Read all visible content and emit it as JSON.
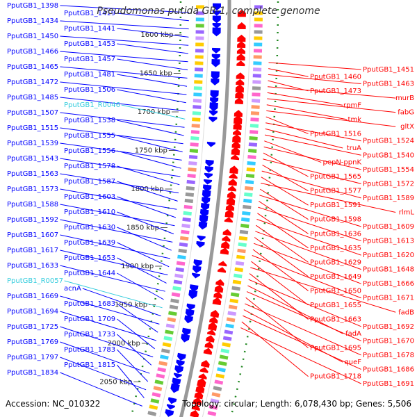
{
  "header": {
    "title": "Pseudomonas putida GB-1, complete genome"
  },
  "footer": {
    "accession": "Accession: NC_010322",
    "summary": "Topology: circular; Length: 6,078,430 bp; Genes: 5,506"
  },
  "colors": {
    "forward_gene": "#0000ff",
    "reverse_gene": "#ff0000",
    "rna_gene": "#33ccdd",
    "backbone": "#999999",
    "tick": "#228822"
  },
  "scale_ticks": [
    "1600 kbp",
    "1650 kbp",
    "1700 kbp",
    "1750 kbp",
    "1800 kbp",
    "1850 kbp",
    "1900 kbp",
    "1950 kbp",
    "2000 kbp",
    "2050 kbp"
  ],
  "labels_left": [
    {
      "text": "PputGB1_1398",
      "type": "fwd"
    },
    {
      "text": "PputGB1_1419",
      "type": "fwd"
    },
    {
      "text": "PputGB1_1434",
      "type": "fwd"
    },
    {
      "text": "PputGB1_1441",
      "type": "fwd"
    },
    {
      "text": "PputGB1_1450",
      "type": "fwd"
    },
    {
      "text": "PputGB1_1453",
      "type": "fwd"
    },
    {
      "text": "PputGB1_1466",
      "type": "fwd"
    },
    {
      "text": "PputGB1_1457",
      "type": "fwd"
    },
    {
      "text": "PputGB1_1465",
      "type": "fwd"
    },
    {
      "text": "PputGB1_1481",
      "type": "fwd"
    },
    {
      "text": "PputGB1_1472",
      "type": "fwd"
    },
    {
      "text": "PputGB1_1506",
      "type": "fwd"
    },
    {
      "text": "PputGB1_1485",
      "type": "fwd"
    },
    {
      "text": "PputGB1_R0046",
      "type": "rna"
    },
    {
      "text": "PputGB1_1507",
      "type": "fwd"
    },
    {
      "text": "PputGB1_1538",
      "type": "fwd"
    },
    {
      "text": "PputGB1_1515",
      "type": "fwd"
    },
    {
      "text": "PputGB1_1555",
      "type": "fwd"
    },
    {
      "text": "PputGB1_1539",
      "type": "fwd"
    },
    {
      "text": "PputGB1_1556",
      "type": "fwd"
    },
    {
      "text": "PputGB1_1543",
      "type": "fwd"
    },
    {
      "text": "PputGB1_1578",
      "type": "fwd"
    },
    {
      "text": "PputGB1_1563",
      "type": "fwd"
    },
    {
      "text": "PputGB1_1587",
      "type": "fwd"
    },
    {
      "text": "PputGB1_1573",
      "type": "fwd"
    },
    {
      "text": "PputGB1_1603",
      "type": "fwd"
    },
    {
      "text": "PputGB1_1588",
      "type": "fwd"
    },
    {
      "text": "PputGB1_1610",
      "type": "fwd"
    },
    {
      "text": "PputGB1_1592",
      "type": "fwd"
    },
    {
      "text": "PputGB1_1630",
      "type": "fwd"
    },
    {
      "text": "PputGB1_1607",
      "type": "fwd"
    },
    {
      "text": "PputGB1_1639",
      "type": "fwd"
    },
    {
      "text": "PputGB1_1617",
      "type": "fwd"
    },
    {
      "text": "PputGB1_1653",
      "type": "fwd"
    },
    {
      "text": "PputGB1_1633",
      "type": "fwd"
    },
    {
      "text": "PputGB1_1644",
      "type": "fwd"
    },
    {
      "text": "PputGB1_R0057",
      "type": "rna"
    },
    {
      "text": "acnA",
      "type": "fwd"
    },
    {
      "text": "PputGB1_1669",
      "type": "fwd"
    },
    {
      "text": "PputGB1_1683",
      "type": "fwd"
    },
    {
      "text": "PputGB1_1694",
      "type": "fwd"
    },
    {
      "text": "PputGB1_1709",
      "type": "fwd"
    },
    {
      "text": "PputGB1_1725",
      "type": "fwd"
    },
    {
      "text": "PputGB1_1733",
      "type": "fwd"
    },
    {
      "text": "PputGB1_1769",
      "type": "fwd"
    },
    {
      "text": "PputGB1_1783",
      "type": "fwd"
    },
    {
      "text": "PputGB1_1797",
      "type": "fwd"
    },
    {
      "text": "PputGB1_1815",
      "type": "fwd"
    },
    {
      "text": "PputGB1_1834",
      "type": "fwd"
    }
  ],
  "labels_right": [
    {
      "text": "PputGB1_1451",
      "type": "rev"
    },
    {
      "text": "PputGB1_1460",
      "type": "rev"
    },
    {
      "text": "PputGB1_1463",
      "type": "rev"
    },
    {
      "text": "PputGB1_1473",
      "type": "rev"
    },
    {
      "text": "murB",
      "type": "rev"
    },
    {
      "text": "rpmF",
      "type": "rev"
    },
    {
      "text": "fabG",
      "type": "rev"
    },
    {
      "text": "tmk",
      "type": "rev"
    },
    {
      "text": "gltX",
      "type": "rev"
    },
    {
      "text": "PputGB1_1516",
      "type": "rev"
    },
    {
      "text": "PputGB1_1524",
      "type": "rev"
    },
    {
      "text": "truA",
      "type": "rev"
    },
    {
      "text": "PputGB1_1540",
      "type": "rev"
    },
    {
      "text": "pepN-ppnK",
      "type": "rev"
    },
    {
      "text": "PputGB1_1554",
      "type": "rev"
    },
    {
      "text": "PputGB1_1565",
      "type": "rev"
    },
    {
      "text": "PputGB1_1572",
      "type": "rev"
    },
    {
      "text": "PputGB1_1577",
      "type": "rev"
    },
    {
      "text": "PputGB1_1589",
      "type": "rev"
    },
    {
      "text": "PputGB1_1591",
      "type": "rev"
    },
    {
      "text": "rlmL",
      "type": "rev"
    },
    {
      "text": "PputGB1_1598",
      "type": "rev"
    },
    {
      "text": "PputGB1_1609",
      "type": "rev"
    },
    {
      "text": "PputGB1_1636",
      "type": "rev"
    },
    {
      "text": "PputGB1_1613",
      "type": "rev"
    },
    {
      "text": "PputGB1_1635",
      "type": "rev"
    },
    {
      "text": "PputGB1_1620",
      "type": "rev"
    },
    {
      "text": "PputGB1_1629",
      "type": "rev"
    },
    {
      "text": "PputGB1_1648",
      "type": "rev"
    },
    {
      "text": "PputGB1_1649",
      "type": "rev"
    },
    {
      "text": "PputGB1_1666",
      "type": "rev"
    },
    {
      "text": "PputGB1_1650",
      "type": "rev"
    },
    {
      "text": "PputGB1_1671",
      "type": "rev"
    },
    {
      "text": "PputGB1_1655",
      "type": "rev"
    },
    {
      "text": "fadB",
      "type": "rev"
    },
    {
      "text": "PputGB1_1663",
      "type": "rev"
    },
    {
      "text": "PputGB1_1692",
      "type": "rev"
    },
    {
      "text": "fadA",
      "type": "rev"
    },
    {
      "text": "PputGB1_1670",
      "type": "rev"
    },
    {
      "text": "PputGB1_1695",
      "type": "rev"
    },
    {
      "text": "PputGB1_1678",
      "type": "rev"
    },
    {
      "text": "queF",
      "type": "rev"
    },
    {
      "text": "PputGB1_1686",
      "type": "rev"
    },
    {
      "text": "PputGB1_1718",
      "type": "rev"
    },
    {
      "text": "PputGB1_1691",
      "type": "rev"
    }
  ]
}
